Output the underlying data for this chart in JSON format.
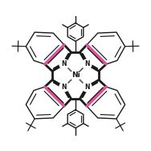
{
  "bg_color": "#ffffff",
  "porphyrin_color": "#1a1a1a",
  "pink_color": "#e8509a",
  "bond_lw": 1.8,
  "thin_lw": 1.0,
  "pink_lw": 2.2,
  "core_lw": 2.0,
  "figsize": [
    1.88,
    1.88
  ],
  "dpi": 100,
  "xlim": [
    -4.8,
    4.8
  ],
  "ylim": [
    -4.8,
    4.8
  ]
}
